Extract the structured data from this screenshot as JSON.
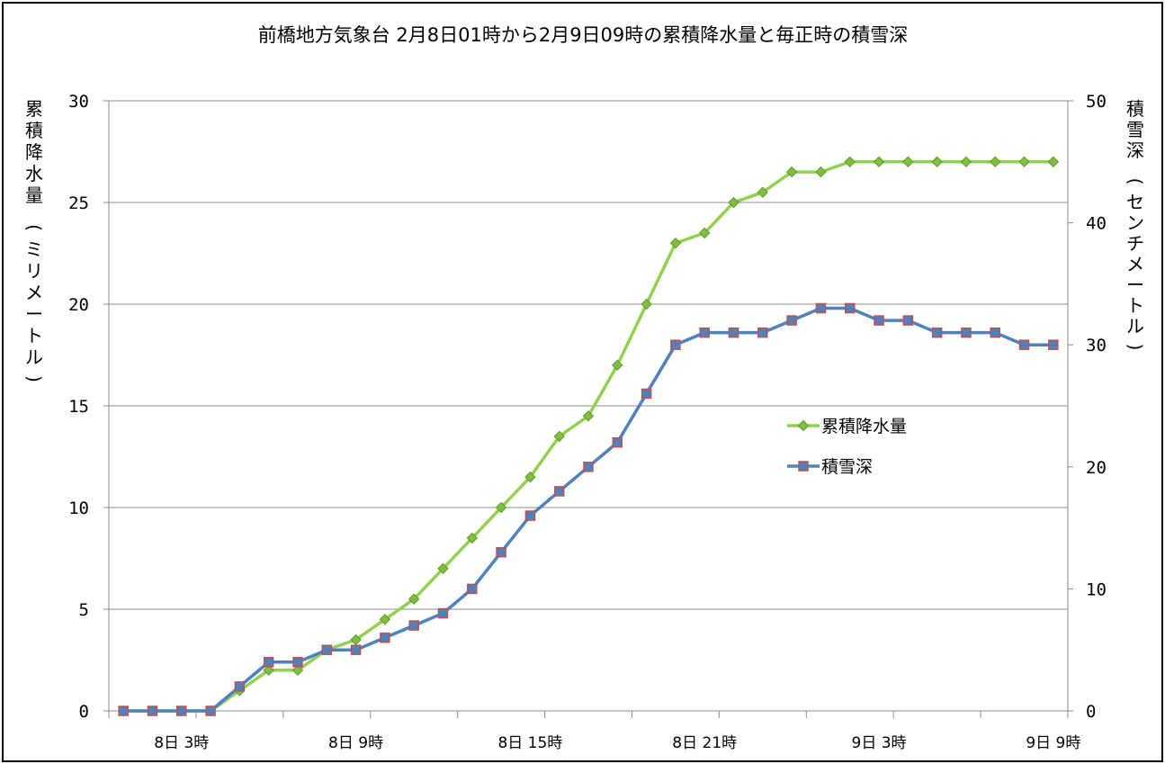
{
  "chart_data": {
    "type": "line",
    "title": "前橋地方気象台 2月8日01時から2月9日09時の累積降水量と毎正時の積雪深",
    "ylabel": "累積降水量 (ミリメートル)",
    "y2label": "積雪深 (センチメートル)",
    "ylim": [
      0,
      30
    ],
    "y2lim": [
      0,
      50
    ],
    "yticks": [
      "0",
      "5",
      "10",
      "15",
      "20",
      "25",
      "30"
    ],
    "y2ticks": [
      "0",
      "10",
      "20",
      "30",
      "40",
      "50"
    ],
    "x": [
      "8日1時",
      "8日2時",
      "8日3時",
      "8日4時",
      "8日5時",
      "8日6時",
      "8日7時",
      "8日8時",
      "8日9時",
      "8日10時",
      "8日11時",
      "8日12時",
      "8日13時",
      "8日14時",
      "8日15時",
      "8日16時",
      "8日17時",
      "8日18時",
      "8日19時",
      "8日20時",
      "8日21時",
      "8日22時",
      "8日23時",
      "8日24時",
      "9日1時",
      "9日2時",
      "9日3時",
      "9日4時",
      "9日5時",
      "9日6時",
      "9日7時",
      "9日8時",
      "9日9時"
    ],
    "xticklabels": [
      "8日 3時",
      "8日 9時",
      "8日 15時",
      "8日 21時",
      "9日 3時",
      "9日 9時"
    ],
    "grid": true,
    "legend_position": "center-right",
    "series": [
      {
        "name": "累積降水量",
        "axis": "left",
        "color": "#92d050",
        "marker": "diamond",
        "values": [
          0,
          0,
          0,
          0,
          1,
          2,
          2,
          3,
          3.5,
          4.5,
          5.5,
          7,
          8.5,
          10,
          11.5,
          13.5,
          14.5,
          17,
          20,
          23,
          23.5,
          25,
          25.5,
          26.5,
          26.5,
          27,
          27,
          27,
          27,
          27,
          27,
          27,
          27
        ]
      },
      {
        "name": "積雪深",
        "axis": "right",
        "color": "#4f81bd",
        "marker": "square",
        "values": [
          0,
          0,
          0,
          0,
          2,
          4,
          4,
          5,
          5,
          6,
          7,
          8,
          10,
          13,
          16,
          18,
          20,
          22,
          26,
          30,
          31,
          31,
          31,
          32,
          33,
          33,
          32,
          32,
          31,
          31,
          31,
          30,
          30
        ]
      }
    ]
  }
}
